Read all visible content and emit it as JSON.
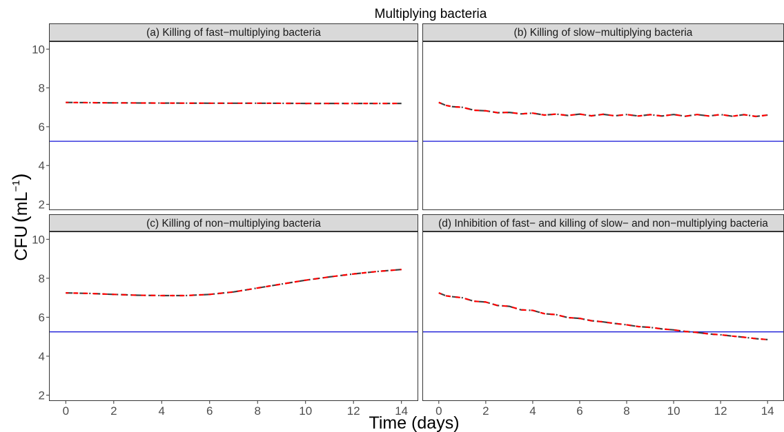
{
  "figure": {
    "title": "Multiplying bacteria",
    "xlabel": "Time (days)",
    "ylabel_main": "CFU",
    "ylabel_unit": "mL",
    "ylabel_exp": "−1"
  },
  "colors": {
    "strip_bg": "#d9d9d9",
    "panel_border": "#333333",
    "threshold": "#2424d9",
    "line_dark": "#404040",
    "line_red": "#ff0000",
    "tick_text": "#4d4d4d"
  },
  "chart_data": [
    {
      "type": "line",
      "title": "(a) Killing of fast−multiplying bacteria",
      "xlim": [
        -0.7,
        14.7
      ],
      "ylim": [
        1.7,
        10.4
      ],
      "x_ticks": [
        "0",
        "2",
        "4",
        "6",
        "8",
        "10",
        "12",
        "14"
      ],
      "y_ticks": [
        "2",
        "4",
        "6",
        "8",
        "10"
      ],
      "show_x_ticks": false,
      "show_y_ticks": true,
      "threshold": 5.25,
      "series": [
        {
          "x": [
            0,
            2,
            4,
            6,
            8,
            10,
            12,
            14
          ],
          "y": [
            7.25,
            7.23,
            7.22,
            7.21,
            7.21,
            7.2,
            7.2,
            7.2
          ]
        }
      ]
    },
    {
      "type": "line",
      "title": "(b) Killing of slow−multiplying bacteria",
      "xlim": [
        -0.7,
        14.7
      ],
      "ylim": [
        1.7,
        10.4
      ],
      "x_ticks": [
        "0",
        "2",
        "4",
        "6",
        "8",
        "10",
        "12",
        "14"
      ],
      "y_ticks": [
        "2",
        "4",
        "6",
        "8",
        "10"
      ],
      "show_x_ticks": false,
      "show_y_ticks": false,
      "threshold": 5.25,
      "series": [
        {
          "x": [
            0,
            0.3,
            0.6,
            1,
            1.5,
            2,
            2.5,
            3,
            3.5,
            4,
            4.5,
            5,
            5.5,
            6,
            6.5,
            7,
            7.5,
            8,
            8.5,
            9,
            9.5,
            10,
            10.5,
            11,
            11.5,
            12,
            12.5,
            13,
            13.5,
            14
          ],
          "y": [
            7.25,
            7.1,
            7.03,
            7.0,
            6.85,
            6.82,
            6.72,
            6.74,
            6.66,
            6.7,
            6.6,
            6.65,
            6.58,
            6.65,
            6.56,
            6.64,
            6.56,
            6.63,
            6.55,
            6.62,
            6.55,
            6.63,
            6.54,
            6.63,
            6.55,
            6.63,
            6.54,
            6.62,
            6.53,
            6.6
          ]
        }
      ]
    },
    {
      "type": "line",
      "title": "(c) Killing of non−multiplying bacteria",
      "xlim": [
        -0.7,
        14.7
      ],
      "ylim": [
        1.7,
        10.4
      ],
      "x_ticks": [
        "0",
        "2",
        "4",
        "6",
        "8",
        "10",
        "12",
        "14"
      ],
      "y_ticks": [
        "2",
        "4",
        "6",
        "8",
        "10"
      ],
      "show_x_ticks": true,
      "show_y_ticks": true,
      "threshold": 5.25,
      "series": [
        {
          "x": [
            0,
            1,
            2,
            3,
            4,
            5,
            6,
            7,
            8,
            9,
            10,
            11,
            12,
            13,
            14
          ],
          "y": [
            7.25,
            7.22,
            7.17,
            7.13,
            7.11,
            7.11,
            7.17,
            7.3,
            7.5,
            7.7,
            7.9,
            8.07,
            8.22,
            8.35,
            8.45
          ]
        }
      ]
    },
    {
      "type": "line",
      "title": "(d) Inhibition of fast− and killing of slow− and non−multiplying bacteria",
      "xlim": [
        -0.7,
        14.7
      ],
      "ylim": [
        1.7,
        10.4
      ],
      "x_ticks": [
        "0",
        "2",
        "4",
        "6",
        "8",
        "10",
        "12",
        "14"
      ],
      "y_ticks": [
        "2",
        "4",
        "6",
        "8",
        "10"
      ],
      "show_x_ticks": true,
      "show_y_ticks": false,
      "threshold": 5.25,
      "series": [
        {
          "x": [
            0,
            0.3,
            0.6,
            1,
            1.5,
            2,
            2.5,
            3,
            3.5,
            4,
            4.5,
            5,
            5.5,
            6,
            6.5,
            7,
            7.5,
            8,
            8.5,
            9,
            9.5,
            10,
            10.5,
            11,
            11.5,
            12,
            12.5,
            13,
            13.5,
            14
          ],
          "y": [
            7.25,
            7.1,
            7.05,
            7.0,
            6.82,
            6.78,
            6.6,
            6.56,
            6.38,
            6.35,
            6.18,
            6.13,
            5.98,
            5.94,
            5.82,
            5.76,
            5.68,
            5.61,
            5.52,
            5.48,
            5.4,
            5.35,
            5.27,
            5.22,
            5.14,
            5.1,
            5.03,
            4.97,
            4.9,
            4.85
          ]
        }
      ]
    }
  ]
}
